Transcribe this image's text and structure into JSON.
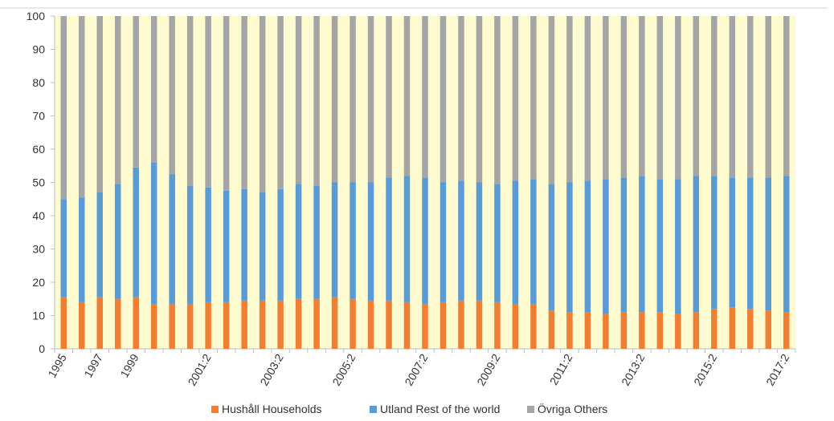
{
  "chart_data": {
    "type": "bar",
    "stacked": true,
    "ylim": [
      0,
      100
    ],
    "yticks": [
      0,
      10,
      20,
      30,
      40,
      50,
      60,
      70,
      80,
      90,
      100
    ],
    "grid": false,
    "legend_position": "bottom",
    "background_color": "#FFFBD0",
    "categories": [
      "1995",
      "1996",
      "1997",
      "1998",
      "1999",
      "2000:1",
      "2000:2",
      "2001:1",
      "2001:2",
      "2002:1",
      "2002:2",
      "2003:1",
      "2003:2",
      "2004:1",
      "2004:2",
      "2005:1",
      "2005:2",
      "2006:1",
      "2006:2",
      "2007:1",
      "2007:2",
      "2008:1",
      "2008:2",
      "2009:1",
      "2009:2",
      "2010:1",
      "2010:2",
      "2011:1",
      "2011:2",
      "2012:1",
      "2012:2",
      "2013:1",
      "2013:2",
      "2014:1",
      "2014:2",
      "2015:1",
      "2015:2",
      "2016:1",
      "2016:2",
      "2017:1",
      "2017:2"
    ],
    "x_tick_labels": [
      {
        "index": 0,
        "label": "1995"
      },
      {
        "index": 2,
        "label": "1997"
      },
      {
        "index": 4,
        "label": "1999"
      },
      {
        "index": 8,
        "label": "2001:2"
      },
      {
        "index": 12,
        "label": "2003:2"
      },
      {
        "index": 16,
        "label": "2005:2"
      },
      {
        "index": 20,
        "label": "2007:2"
      },
      {
        "index": 24,
        "label": "2009:2"
      },
      {
        "index": 28,
        "label": "2011:2"
      },
      {
        "index": 32,
        "label": "2013:2"
      },
      {
        "index": 36,
        "label": "2015:2"
      },
      {
        "index": 40,
        "label": "2017:2"
      }
    ],
    "series": [
      {
        "name": "Hushåll Households",
        "color": "#F07F33",
        "values": [
          15.5,
          14,
          15.5,
          15,
          15.5,
          13.5,
          13.5,
          13.5,
          14,
          14,
          14.5,
          14.5,
          14.5,
          15,
          15,
          15.5,
          15,
          14.5,
          14.5,
          14,
          13.5,
          14,
          14.5,
          14.5,
          14,
          13.5,
          13.5,
          11.5,
          11,
          11,
          10.5,
          11,
          11,
          11,
          10.5,
          11,
          12,
          12.5,
          12,
          11.5,
          11
        ]
      },
      {
        "name": "Utland Rest of the world",
        "color": "#5B9BD5",
        "values": [
          29.5,
          31.5,
          31.5,
          34.5,
          39,
          42.5,
          39,
          35.5,
          34.5,
          33.5,
          33.5,
          32.5,
          33.5,
          34.5,
          34,
          34.5,
          35,
          35.5,
          37,
          38,
          38,
          36,
          36,
          35.5,
          35.5,
          37,
          37.5,
          38,
          39,
          39.5,
          40.5,
          40.5,
          41,
          40,
          40.5,
          41,
          40,
          39,
          39.5,
          40,
          41
        ]
      },
      {
        "name": "Övriga Others",
        "color": "#A5A5A5",
        "values": [
          55,
          54.5,
          53,
          50.5,
          45.5,
          44,
          47.5,
          51,
          51.5,
          52.5,
          52,
          53,
          52,
          50.5,
          51,
          50,
          50,
          50,
          48.5,
          48,
          48.5,
          50,
          49.5,
          50,
          50.5,
          49.5,
          49,
          50.5,
          50,
          49.5,
          49,
          48.5,
          48,
          49,
          49,
          48,
          48,
          48.5,
          48.5,
          48.5,
          48
        ]
      }
    ]
  }
}
